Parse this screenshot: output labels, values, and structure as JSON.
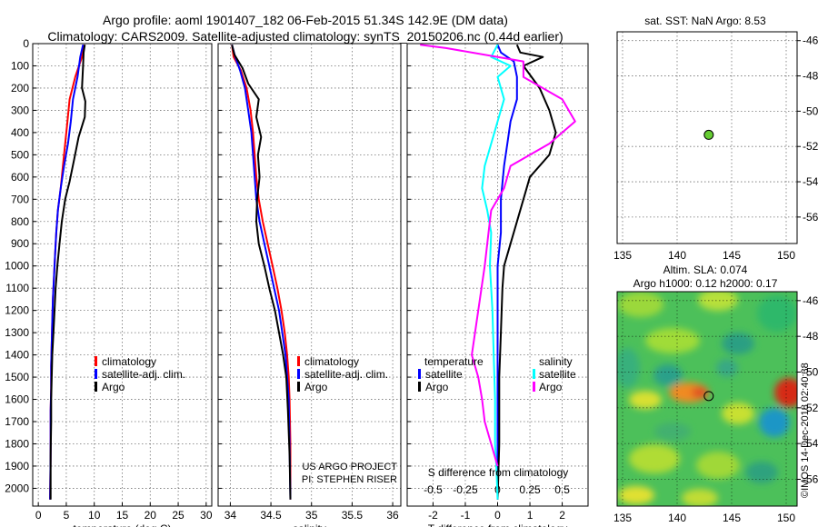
{
  "header": {
    "line1": "Argo profile: aoml 1901407_182 06-Feb-2015 51.34S 142.9E (DM data)",
    "line2": "Climatology: CARS2009. Satellite-adjusted climatology: synTS_20150206.nc (0.44d earlier)"
  },
  "colors": {
    "climatology": "#ff0000",
    "satellite": "#0000ff",
    "argo": "#000000",
    "sal_satellite": "#00ffff",
    "sal_argo": "#ff00ff"
  },
  "chart_data": [
    {
      "id": "temperature",
      "type": "line",
      "xlabel": "temperature (deg C)",
      "ylabel": "",
      "xlim": [
        -1,
        31
      ],
      "ylim": [
        2080,
        0
      ],
      "xticks": [
        "0",
        "5",
        "10",
        "15",
        "20",
        "25",
        "30"
      ],
      "xtick_values": [
        0,
        5,
        10,
        15,
        20,
        25,
        30
      ],
      "ytick_values": [
        0,
        100,
        200,
        300,
        400,
        500,
        600,
        700,
        800,
        900,
        1000,
        1100,
        1200,
        1300,
        1400,
        1500,
        1600,
        1700,
        1800,
        1900,
        2000
      ],
      "legend": [
        {
          "label": "climatology",
          "color": "#ff0000"
        },
        {
          "label": "satellite-adj. clim.",
          "color": "#0000ff"
        },
        {
          "label": "Argo",
          "color": "#000000"
        }
      ],
      "series": [
        {
          "name": "climatology",
          "color": "#ff0000",
          "x": [
            8.2,
            7.8,
            6.6,
            5.6,
            5.2,
            4.8,
            4.4,
            4.0,
            3.5,
            3.2,
            3.0,
            2.8,
            2.6,
            2.5,
            2.4,
            2.3,
            2.3,
            2.2,
            2.2,
            2.2,
            2.1
          ],
          "y": [
            5,
            60,
            150,
            250,
            350,
            450,
            550,
            650,
            750,
            850,
            950,
            1050,
            1150,
            1250,
            1350,
            1450,
            1550,
            1650,
            1750,
            1850,
            2050
          ]
        },
        {
          "name": "satellite-adj. clim.",
          "color": "#0000ff",
          "x": [
            8.0,
            7.5,
            7.0,
            6.2,
            5.8,
            5.3,
            4.6,
            4.0,
            3.5,
            3.2,
            3.0,
            2.8,
            2.6,
            2.5,
            2.4,
            2.3,
            2.3,
            2.2,
            2.2,
            2.2,
            2.1
          ],
          "y": [
            5,
            60,
            150,
            250,
            350,
            450,
            550,
            650,
            750,
            850,
            950,
            1050,
            1150,
            1250,
            1350,
            1450,
            1550,
            1650,
            1750,
            1850,
            2050
          ]
        },
        {
          "name": "Argo",
          "color": "#000000",
          "x": [
            8.3,
            8.1,
            8.0,
            7.8,
            8.4,
            8.3,
            7.2,
            6.4,
            5.6,
            4.8,
            4.2,
            3.8,
            3.4,
            3.1,
            2.9,
            2.7,
            2.5,
            2.4,
            2.3,
            2.3,
            2.2,
            2.2
          ],
          "y": [
            5,
            40,
            100,
            200,
            260,
            330,
            420,
            520,
            620,
            700,
            800,
            900,
            1000,
            1100,
            1200,
            1300,
            1400,
            1500,
            1600,
            1700,
            1850,
            2050
          ]
        }
      ]
    },
    {
      "id": "salinity",
      "type": "line",
      "xlabel": "salinity",
      "ylabel": "",
      "xlim": [
        33.85,
        36.1
      ],
      "ylim": [
        2080,
        0
      ],
      "xticks": [
        "34",
        "34.5",
        "35",
        "35.5",
        "36"
      ],
      "xtick_values": [
        34,
        34.5,
        35,
        35.5,
        36
      ],
      "ytick_values": [
        0,
        100,
        200,
        300,
        400,
        500,
        600,
        700,
        800,
        900,
        1000,
        1100,
        1200,
        1300,
        1400,
        1500,
        1600,
        1700,
        1800,
        1900,
        2000
      ],
      "legend": [
        {
          "label": "climatology",
          "color": "#ff0000"
        },
        {
          "label": "satellite-adj. clim.",
          "color": "#0000ff"
        },
        {
          "label": "Argo",
          "color": "#000000"
        }
      ],
      "annotations": [
        "US ARGO PROJECT",
        "PI: STEPHEN RISER"
      ],
      "series": [
        {
          "name": "climatology",
          "color": "#ff0000",
          "x": [
            34.02,
            34.04,
            34.13,
            34.2,
            34.25,
            34.28,
            34.3,
            34.32,
            34.35,
            34.4,
            34.46,
            34.52,
            34.58,
            34.63,
            34.67,
            34.7,
            34.72,
            34.73,
            34.74,
            34.74
          ],
          "y": [
            5,
            60,
            120,
            200,
            300,
            400,
            500,
            600,
            700,
            800,
            900,
            1000,
            1100,
            1200,
            1300,
            1400,
            1500,
            1600,
            1800,
            2050
          ]
        },
        {
          "name": "satellite-adj. clim.",
          "color": "#0000ff",
          "x": [
            34.02,
            34.06,
            34.12,
            34.18,
            34.22,
            34.26,
            34.28,
            34.3,
            34.32,
            34.36,
            34.42,
            34.48,
            34.54,
            34.6,
            34.64,
            34.68,
            34.7,
            34.72,
            34.73,
            34.74
          ],
          "y": [
            5,
            60,
            120,
            200,
            300,
            400,
            500,
            600,
            700,
            800,
            900,
            1000,
            1100,
            1200,
            1300,
            1400,
            1500,
            1600,
            1800,
            2050
          ]
        },
        {
          "name": "Argo",
          "color": "#000000",
          "x": [
            34.02,
            34.05,
            34.15,
            34.22,
            34.35,
            34.32,
            34.38,
            34.34,
            34.36,
            34.33,
            34.32,
            34.35,
            34.42,
            34.48,
            34.55,
            34.6,
            34.65,
            34.69,
            34.71,
            34.73,
            34.74
          ],
          "y": [
            5,
            50,
            110,
            180,
            250,
            330,
            420,
            500,
            600,
            700,
            800,
            900,
            1000,
            1100,
            1200,
            1300,
            1400,
            1500,
            1650,
            1850,
            2050
          ]
        }
      ]
    },
    {
      "id": "difference",
      "type": "line",
      "xlabel": "T difference from climatology",
      "xlabel2": "S difference from climatology",
      "xlim": [
        -2.8,
        2.8
      ],
      "ylim": [
        2080,
        0
      ],
      "xticks": [
        "-2",
        "-1",
        "0",
        "1",
        "2"
      ],
      "xtick_values": [
        -2,
        -1,
        0,
        1,
        2
      ],
      "xticks2": [
        "-0.5",
        "-0.25",
        "0",
        "0.25",
        "0.5"
      ],
      "xtick2_values": [
        -0.5,
        -0.25,
        0,
        0.25,
        0.5
      ],
      "ytick_values": [
        0,
        100,
        200,
        300,
        400,
        500,
        600,
        700,
        800,
        900,
        1000,
        1100,
        1200,
        1300,
        1400,
        1500,
        1600,
        1700,
        1800,
        1900,
        2000
      ],
      "legend_temperature": {
        "title": "temperature",
        "items": [
          {
            "label": "satellite",
            "color": "#0000ff"
          },
          {
            "label": "Argo",
            "color": "#000000"
          }
        ]
      },
      "legend_salinity": {
        "title": "salinity",
        "items": [
          {
            "label": "satellite",
            "color": "#00ffff"
          },
          {
            "label": "Argo",
            "color": "#ff00ff"
          }
        ]
      },
      "series": [
        {
          "name": "T satellite",
          "color": "#0000ff",
          "x": [
            0.0,
            0.1,
            0.5,
            0.6,
            0.6,
            0.4,
            0.3,
            0.2,
            0.1,
            0.1,
            0.0,
            0.0,
            0.0,
            0.0,
            0.0,
            0.0,
            0.0
          ],
          "y": [
            5,
            40,
            80,
            150,
            250,
            350,
            450,
            550,
            700,
            850,
            1000,
            1200,
            1400,
            1600,
            1800,
            1900,
            2050
          ]
        },
        {
          "name": "T Argo",
          "color": "#000000",
          "x": [
            0.6,
            0.7,
            1.4,
            0.8,
            1.3,
            1.6,
            1.8,
            1.6,
            1.0,
            0.8,
            0.6,
            0.4,
            0.2,
            0.15,
            0.1,
            0.05,
            0.05,
            0.0
          ],
          "y": [
            5,
            40,
            60,
            100,
            200,
            300,
            400,
            500,
            600,
            700,
            800,
            900,
            1000,
            1100,
            1300,
            1500,
            1800,
            2050
          ]
        },
        {
          "name": "S satellite",
          "color": "#00ffff",
          "x": [
            0.0,
            -0.05,
            0.1,
            0.0,
            0.05,
            0.0,
            -0.05,
            -0.1,
            -0.12,
            -0.08,
            -0.05,
            -0.06,
            -0.04,
            -0.03,
            -0.02,
            -0.02,
            -0.02,
            -0.01,
            0.0
          ],
          "y": [
            5,
            60,
            100,
            150,
            250,
            350,
            450,
            550,
            650,
            750,
            850,
            1000,
            1200,
            1400,
            1600,
            1700,
            1800,
            1900,
            2050
          ]
        },
        {
          "name": "S Argo",
          "color": "#ff00ff",
          "x": [
            -0.6,
            -0.4,
            0.2,
            0.2,
            0.5,
            0.6,
            0.4,
            0.1,
            0.05,
            -0.05,
            -0.07,
            -0.1,
            -0.15,
            -0.2,
            -0.15,
            -0.12,
            -0.1,
            -0.05,
            0.0
          ],
          "y": [
            5,
            20,
            80,
            150,
            250,
            350,
            450,
            550,
            650,
            750,
            850,
            1000,
            1200,
            1400,
            1500,
            1600,
            1700,
            1800,
            1900
          ]
        }
      ]
    },
    {
      "id": "sst_map",
      "type": "scatter",
      "title": "sat. SST: NaN Argo: 8.53",
      "xlim": [
        134.5,
        151
      ],
      "ylim": [
        -57.5,
        -45.5
      ],
      "xticks": [
        "135",
        "140",
        "145",
        "150"
      ],
      "xtick_values": [
        135,
        140,
        145,
        150
      ],
      "yticks": [
        "-46",
        "-48",
        "-50",
        "-52",
        "-54",
        "-56"
      ],
      "ytick_values": [
        -46,
        -48,
        -50,
        -52,
        -54,
        -56
      ],
      "points": [
        {
          "x": 142.9,
          "y": -51.34,
          "color": "#66cc33"
        }
      ]
    },
    {
      "id": "sla_map",
      "type": "heatmap",
      "title_line1": "Altim. SLA: 0.074",
      "title_line2": "Argo h1000: 0.12 h2000: 0.17",
      "xlim": [
        134.5,
        151
      ],
      "ylim": [
        -57.5,
        -45.5
      ],
      "xticks": [
        "135",
        "140",
        "145",
        "150"
      ],
      "xtick_values": [
        135,
        140,
        145,
        150
      ],
      "yticks": [
        "-46",
        "-48",
        "-50",
        "-52",
        "-54",
        "-56"
      ],
      "ytick_values": [
        -46,
        -48,
        -50,
        -52,
        -54,
        -56
      ],
      "points": [
        {
          "x": 142.9,
          "y": -51.34,
          "color": "#66cc33"
        }
      ]
    }
  ],
  "watermark": "©IMOS 14-Dec-2018 02:40:38"
}
